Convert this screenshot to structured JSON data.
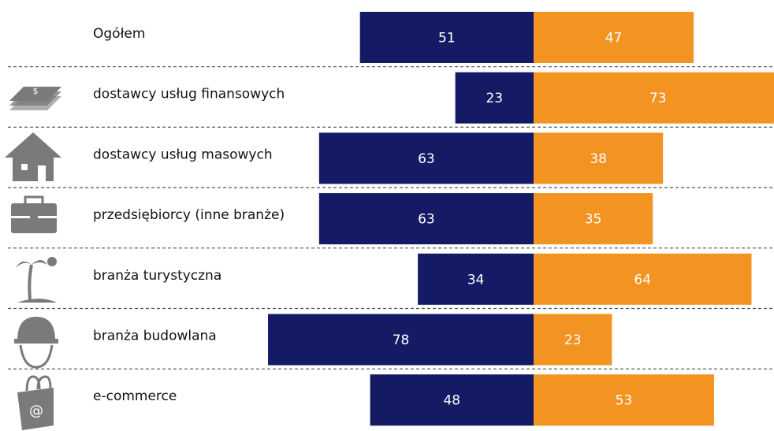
{
  "chart_data": {
    "type": "bar",
    "categories": [
      "Ogółem",
      "dostawcy usług finansowych",
      "dostawcy usług masowych",
      "przedsiębiorcy (inne branże)",
      "branża turystyczna",
      "branża budowlana",
      "e-commerce"
    ],
    "series": [
      {
        "color": "#141a64",
        "values": [
          51,
          23,
          63,
          63,
          34,
          78,
          48
        ]
      },
      {
        "color": "#f39322",
        "values": [
          47,
          73,
          38,
          35,
          64,
          23,
          53
        ]
      }
    ]
  }
}
